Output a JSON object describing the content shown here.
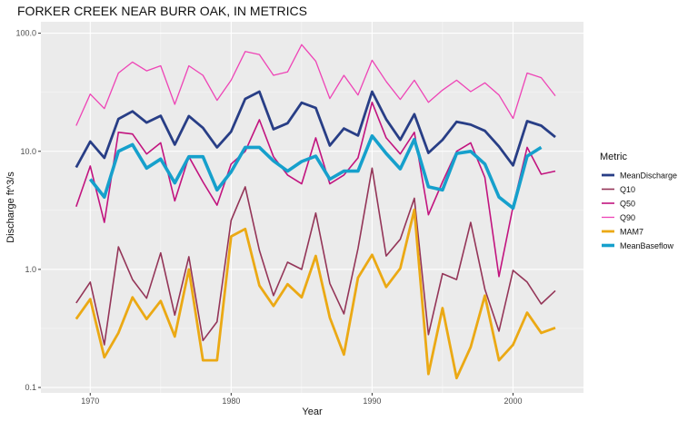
{
  "chart_data": {
    "type": "line",
    "title": "FORKER CREEK NEAR BURR OAK, IN  METRICS",
    "xlabel": "Year",
    "ylabel": "Discharge ft^3/s",
    "xlim": [
      1966.5,
      2005
    ],
    "ylim": [
      0.09,
      125
    ],
    "y_scale": "log10",
    "x_ticks": [
      1970,
      1980,
      1990,
      2000
    ],
    "x_tick_labels": [
      "1970",
      "1980",
      "1990",
      "2000"
    ],
    "y_ticks": [
      0.1,
      1,
      10,
      100
    ],
    "y_tick_labels": [
      "0.1",
      "1.0",
      "10.0",
      "100.0"
    ],
    "grid": true,
    "legend": {
      "title": "Metric",
      "position": "right"
    },
    "series": [
      {
        "name": "MeanDischarge",
        "color": "#283e86",
        "x": [
          1969,
          1970,
          1971,
          1972,
          1973,
          1974,
          1975,
          1976,
          1977,
          1978,
          1979,
          1980,
          1981,
          1982,
          1983,
          1984,
          1985,
          1986,
          1987,
          1988,
          1989,
          1990,
          1991,
          1992,
          1993,
          1994,
          1995,
          1996,
          1997,
          1998,
          1999,
          2000,
          2001,
          2002,
          2003
        ],
        "values": [
          7.3,
          12.1,
          8.8,
          18.8,
          21.8,
          17.5,
          20.0,
          11.4,
          19.9,
          15.8,
          10.8,
          14.7,
          27.8,
          32.0,
          15.4,
          17.3,
          25.8,
          23.3,
          11.2,
          15.6,
          13.6,
          32.0,
          18.7,
          12.5,
          20.6,
          9.7,
          12.5,
          17.8,
          16.8,
          14.9,
          11.0,
          7.6,
          18.0,
          16.5,
          13.2
        ]
      },
      {
        "name": "Q10",
        "color": "#943558",
        "x": [
          1969,
          1970,
          1971,
          1972,
          1973,
          1974,
          1975,
          1976,
          1977,
          1978,
          1979,
          1980,
          1981,
          1982,
          1983,
          1984,
          1985,
          1986,
          1987,
          1988,
          1989,
          1990,
          1991,
          1992,
          1993,
          1994,
          1995,
          1996,
          1997,
          1998,
          1999,
          2000,
          2001,
          2002,
          2003
        ],
        "values": [
          0.52,
          0.78,
          0.23,
          1.55,
          0.82,
          0.57,
          1.38,
          0.41,
          1.28,
          0.25,
          0.36,
          2.6,
          5.0,
          1.45,
          0.6,
          1.15,
          1.0,
          3.0,
          0.76,
          0.42,
          1.5,
          7.2,
          1.3,
          1.8,
          4.0,
          0.28,
          0.92,
          0.82,
          2.5,
          0.68,
          0.3,
          0.98,
          0.78,
          0.51,
          0.66
        ]
      },
      {
        "name": "Q50",
        "color": "#c2147f",
        "x": [
          1969,
          1970,
          1971,
          1972,
          1973,
          1974,
          1975,
          1976,
          1977,
          1978,
          1979,
          1980,
          1981,
          1982,
          1983,
          1984,
          1985,
          1986,
          1987,
          1988,
          1989,
          1990,
          1991,
          1992,
          1993,
          1994,
          1995,
          1996,
          1997,
          1998,
          1999,
          2000,
          2001,
          2002,
          2003
        ],
        "values": [
          3.4,
          7.5,
          2.5,
          14.5,
          14.0,
          9.5,
          11.8,
          3.8,
          9.0,
          5.5,
          3.5,
          7.8,
          10.0,
          18.5,
          9.0,
          6.3,
          5.3,
          13.0,
          5.3,
          6.3,
          8.8,
          26.0,
          13.0,
          9.5,
          14.5,
          2.9,
          5.5,
          10.0,
          11.8,
          6.0,
          0.87,
          3.4,
          10.8,
          6.4,
          6.8
        ]
      },
      {
        "name": "Q90",
        "color": "#ee44b6",
        "x": [
          1969,
          1970,
          1971,
          1972,
          1973,
          1974,
          1975,
          1976,
          1977,
          1978,
          1979,
          1980,
          1981,
          1982,
          1983,
          1984,
          1985,
          1986,
          1987,
          1988,
          1989,
          1990,
          1991,
          1992,
          1993,
          1994,
          1995,
          1996,
          1997,
          1998,
          1999,
          2000,
          2001,
          2002,
          2003
        ],
        "values": [
          16.5,
          30.5,
          23.0,
          46.0,
          57.0,
          48.0,
          53.0,
          25.0,
          53.0,
          44.0,
          27.0,
          40.0,
          70.0,
          66.0,
          44.0,
          47.0,
          80.0,
          58.0,
          28.0,
          44.0,
          30.0,
          59.0,
          39.0,
          27.5,
          40.0,
          26.0,
          33.0,
          40.0,
          32.0,
          38.0,
          30.0,
          19.0,
          46.0,
          42.0,
          29.5
        ]
      },
      {
        "name": "MAM7",
        "color": "#eba914",
        "x": [
          1969,
          1970,
          1971,
          1972,
          1973,
          1974,
          1975,
          1976,
          1977,
          1978,
          1979,
          1980,
          1981,
          1982,
          1983,
          1984,
          1985,
          1986,
          1987,
          1988,
          1989,
          1990,
          1991,
          1992,
          1993,
          1994,
          1995,
          1996,
          1997,
          1998,
          1999,
          2000,
          2001,
          2002,
          2003
        ],
        "values": [
          0.38,
          0.56,
          0.18,
          0.29,
          0.58,
          0.38,
          0.54,
          0.27,
          1.0,
          0.17,
          0.17,
          1.9,
          2.2,
          0.73,
          0.49,
          0.75,
          0.58,
          1.3,
          0.39,
          0.19,
          0.85,
          1.33,
          0.71,
          1.02,
          3.2,
          0.13,
          0.47,
          0.12,
          0.22,
          0.6,
          0.17,
          0.23,
          0.43,
          0.29,
          0.32
        ]
      },
      {
        "name": "MeanBaseflow",
        "color": "#16a0cc",
        "x": [
          1970,
          1971,
          1972,
          1973,
          1974,
          1975,
          1976,
          1977,
          1978,
          1979,
          1980,
          1981,
          1982,
          1983,
          1984,
          1985,
          1986,
          1987,
          1988,
          1989,
          1990,
          1991,
          1992,
          1993,
          1994,
          1995,
          1996,
          1997,
          1998,
          1999,
          2000,
          2001,
          2002
        ],
        "values": [
          5.8,
          4.1,
          10.0,
          11.4,
          7.2,
          8.6,
          5.4,
          9.0,
          9.0,
          4.7,
          6.7,
          10.8,
          10.8,
          8.3,
          6.8,
          8.2,
          9.1,
          5.8,
          6.8,
          6.8,
          13.5,
          9.6,
          7.1,
          12.6,
          5.0,
          4.7,
          9.6,
          10.0,
          7.8,
          4.1,
          3.3,
          9.1,
          10.8
        ]
      }
    ]
  }
}
